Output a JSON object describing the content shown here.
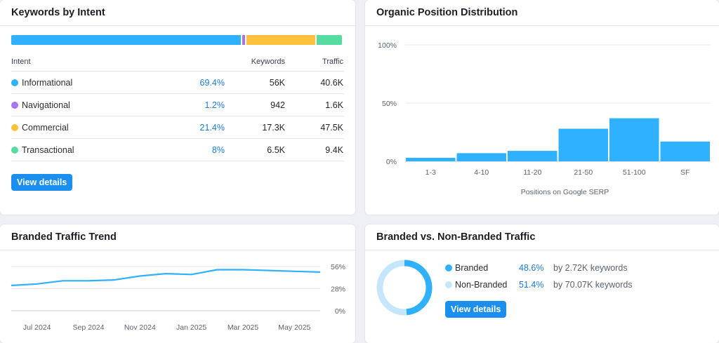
{
  "intent_card": {
    "title": "Keywords by Intent",
    "columns": {
      "intent": "Intent",
      "keywords": "Keywords",
      "traffic": "Traffic"
    },
    "rows": [
      {
        "name": "Informational",
        "percent": "69.4%",
        "keywords": "56K",
        "traffic": "40.6K",
        "color": "#2fb1ff",
        "share": 69.4
      },
      {
        "name": "Navigational",
        "percent": "1.2%",
        "keywords": "942",
        "traffic": "1.6K",
        "color": "#a675f2",
        "share": 1.2
      },
      {
        "name": "Commercial",
        "percent": "21.4%",
        "keywords": "17.3K",
        "traffic": "47.5K",
        "color": "#fdc23b",
        "share": 21.4
      },
      {
        "name": "Transactional",
        "percent": "8%",
        "keywords": "6.5K",
        "traffic": "9.4K",
        "color": "#56dba0",
        "share": 8
      }
    ],
    "view_details": "View details"
  },
  "position_card": {
    "title": "Organic Position Distribution"
  },
  "trend_card": {
    "title": "Branded Traffic Trend"
  },
  "branded_card": {
    "title": "Branded vs. Non-Branded Traffic",
    "items": [
      {
        "name": "Branded",
        "percent": "48.6%",
        "keywords": "by 2.72K keywords",
        "color": "#2fb1ff",
        "share": 48.6
      },
      {
        "name": "Non-Branded",
        "percent": "51.4%",
        "keywords": "by 70.07K keywords",
        "color": "#c5e6fb",
        "share": 51.4
      }
    ],
    "view_details": "View details"
  },
  "chart_data": [
    {
      "type": "bar",
      "title": "Organic Position Distribution",
      "categories": [
        "1-3",
        "4-10",
        "11-20",
        "21-50",
        "51-100",
        "SF"
      ],
      "values": [
        3,
        7,
        9,
        28,
        37,
        17
      ],
      "xlabel": "Positions on Google SERP",
      "ylabel": "",
      "yticks": [
        "0%",
        "50%",
        "100%"
      ],
      "ylim": [
        0,
        100
      ],
      "grid": true,
      "color": "#2fb1ff"
    },
    {
      "type": "line",
      "title": "Branded Traffic Trend",
      "x": [
        "2024-06",
        "2024-07",
        "2024-08",
        "2024-09",
        "2024-10",
        "2024-11",
        "2024-12",
        "2025-01",
        "2025-02",
        "2025-03",
        "2025-04",
        "2025-05",
        "2025-06"
      ],
      "xticks": [
        "Jul 2024",
        "Sep 2024",
        "Nov 2024",
        "Jan 2025",
        "Mar 2025",
        "May 2025"
      ],
      "values": [
        32,
        34,
        38,
        38,
        39,
        44,
        47,
        46,
        52,
        52,
        51,
        50,
        49
      ],
      "yticks": [
        "0%",
        "28%",
        "56%"
      ],
      "ylim": [
        0,
        56
      ],
      "grid": true,
      "color": "#2fb1ff"
    },
    {
      "type": "pie",
      "title": "Branded vs. Non-Branded Traffic",
      "categories": [
        "Branded",
        "Non-Branded"
      ],
      "values": [
        48.6,
        51.4
      ],
      "colors": [
        "#2fb1ff",
        "#c5e6fb"
      ]
    }
  ]
}
